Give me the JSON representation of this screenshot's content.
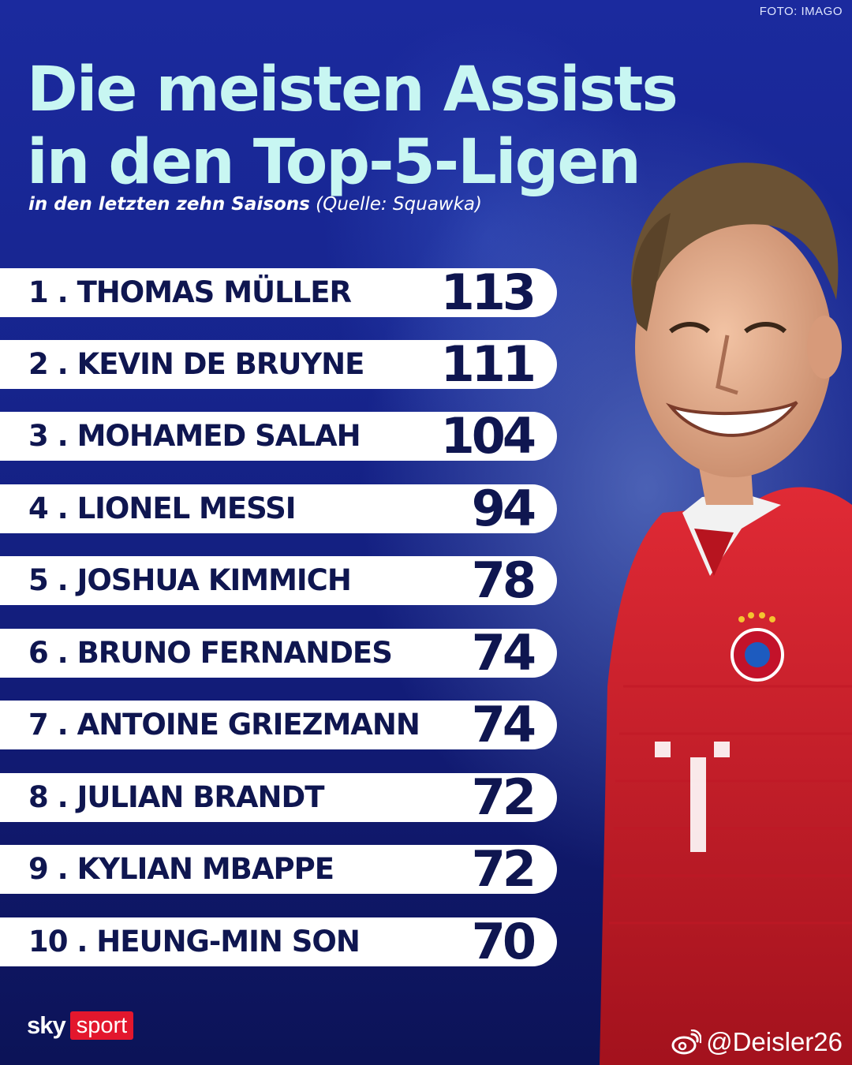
{
  "photo_credit": "FOTO: IMAGO",
  "title_line1": "Die meisten Assists",
  "title_line2": "in den Top-5-Ligen",
  "subtitle_bold": "in den letzten zehn Saisons",
  "subtitle_source": "(Quelle: Squawka)",
  "ranking": [
    {
      "label": "1 . THOMAS MÜLLER",
      "value": "113"
    },
    {
      "label": "2 . KEVIN DE BRUYNE",
      "value": "111"
    },
    {
      "label": "3 . MOHAMED SALAH",
      "value": "104"
    },
    {
      "label": "4 . LIONEL MESSI",
      "value": "94"
    },
    {
      "label": "5 . JOSHUA KIMMICH",
      "value": "78"
    },
    {
      "label": "6 . BRUNO FERNANDES",
      "value": "74"
    },
    {
      "label": "7 . ANTOINE GRIEZMANN",
      "value": "74"
    },
    {
      "label": "8 . JULIAN BRANDT",
      "value": "72"
    },
    {
      "label": "9 . KYLIAN MBAPPE",
      "value": "72"
    },
    {
      "label": "10 . HEUNG-MIN SON",
      "value": "70"
    }
  ],
  "brand": {
    "sky": "sky",
    "sport": "sport"
  },
  "watermark": "@Deisler26",
  "icons": {
    "watermark": "weibo-icon"
  },
  "colors": {
    "background": "#16248d",
    "title": "#c8f6f2",
    "row_bg": "#ffffff",
    "row_text": "#0f1650",
    "brand_red": "#e3172d",
    "jersey_red": "#d3202c"
  }
}
